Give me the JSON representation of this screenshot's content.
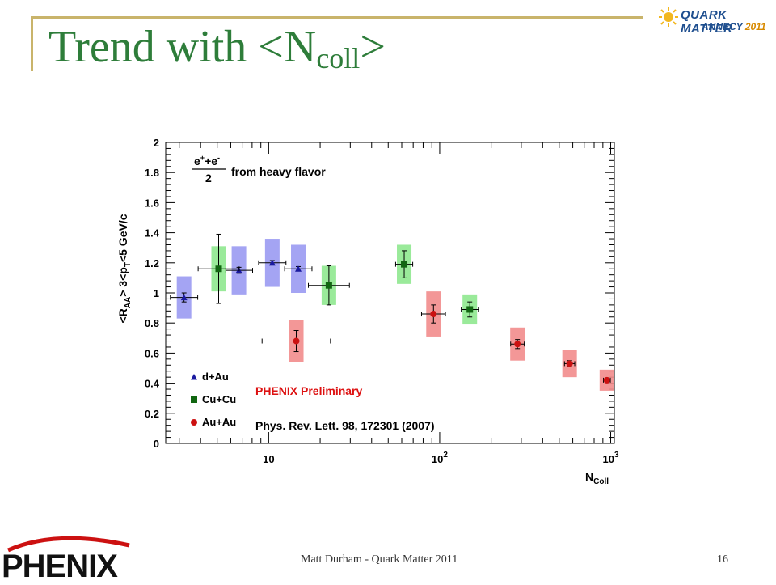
{
  "slide": {
    "title_main": "Trend with <N",
    "title_sub": "coll",
    "title_end": ">",
    "footer": "Matt Durham - Quark Matter 2011",
    "page_number": "16",
    "conference_logo": {
      "line1": "QUARK MATTER",
      "line2_place": "ANNECY",
      "line2_year": "2011"
    },
    "experiment_logo": "PHENIX",
    "accent_color": "#2e7d3a",
    "frame_color": "#c9b46b"
  },
  "chart_data": {
    "type": "scatter",
    "x_scale": "log",
    "xlim": [
      2.5,
      1050
    ],
    "ylim": [
      0,
      2
    ],
    "x_tick_labels": [
      "10",
      "10^2",
      "10^3"
    ],
    "y_tick_labels": [
      "0",
      "0.2",
      "0.4",
      "0.6",
      "0.8",
      "1",
      "1.2",
      "1.4",
      "1.6",
      "1.8",
      "2"
    ],
    "ylabel": "<R_AA> 3<p_T<5 GeV/c",
    "xlabel": "N_Coll",
    "annotation_formula": "e⁺+e⁻ / 2 from heavy flavor",
    "annotation_formula_num": "e",
    "annotation_formula_den": "2",
    "annotation_formula_text": "from heavy flavor",
    "preliminary_label": "PHENIX Preliminary",
    "reference": "Phys. Rev. Lett. 98, 172301 (2007)",
    "series": [
      {
        "name": "d+Au",
        "marker": "triangle",
        "color": "#1a1aa0",
        "band_color": "#9a9af2",
        "points": [
          {
            "x": 3.2,
            "y": 0.97,
            "stat": 0.03,
            "sys": 0.14,
            "xerr": 0.08
          },
          {
            "x": 6.7,
            "y": 1.15,
            "stat": 0.02,
            "sys": 0.16,
            "xerr": 0.08
          },
          {
            "x": 10.5,
            "y": 1.2,
            "stat": 0.015,
            "sys": 0.16,
            "xerr": 0.08
          },
          {
            "x": 14.9,
            "y": 1.16,
            "stat": 0.015,
            "sys": 0.16,
            "xerr": 0.08
          }
        ]
      },
      {
        "name": "Cu+Cu",
        "marker": "square",
        "color": "#116611",
        "band_color": "#8fe88f",
        "points": [
          {
            "x": 5.1,
            "y": 1.16,
            "stat": 0.23,
            "sys": 0.15,
            "xerr": 0.12
          },
          {
            "x": 22.5,
            "y": 1.05,
            "stat": 0.13,
            "sys": 0.13,
            "xerr": 0.12
          },
          {
            "x": 62.0,
            "y": 1.19,
            "stat": 0.09,
            "sys": 0.13,
            "xerr": 0.05
          },
          {
            "x": 150.0,
            "y": 0.89,
            "stat": 0.05,
            "sys": 0.1,
            "xerr": 0.05
          }
        ]
      },
      {
        "name": "Au+Au",
        "marker": "circle",
        "color": "#cc1111",
        "band_color": "#f28c8c",
        "points": [
          {
            "x": 14.5,
            "y": 0.68,
            "stat": 0.07,
            "sys": 0.14,
            "xerr": 0.2
          },
          {
            "x": 92.0,
            "y": 0.86,
            "stat": 0.06,
            "sys": 0.15,
            "xerr": 0.07
          },
          {
            "x": 285.0,
            "y": 0.66,
            "stat": 0.03,
            "sys": 0.11,
            "xerr": 0.04
          },
          {
            "x": 575.0,
            "y": 0.53,
            "stat": 0.02,
            "sys": 0.09,
            "xerr": 0.03
          },
          {
            "x": 950.0,
            "y": 0.42,
            "stat": 0.01,
            "sys": 0.07,
            "xerr": 0.02
          }
        ]
      }
    ]
  }
}
